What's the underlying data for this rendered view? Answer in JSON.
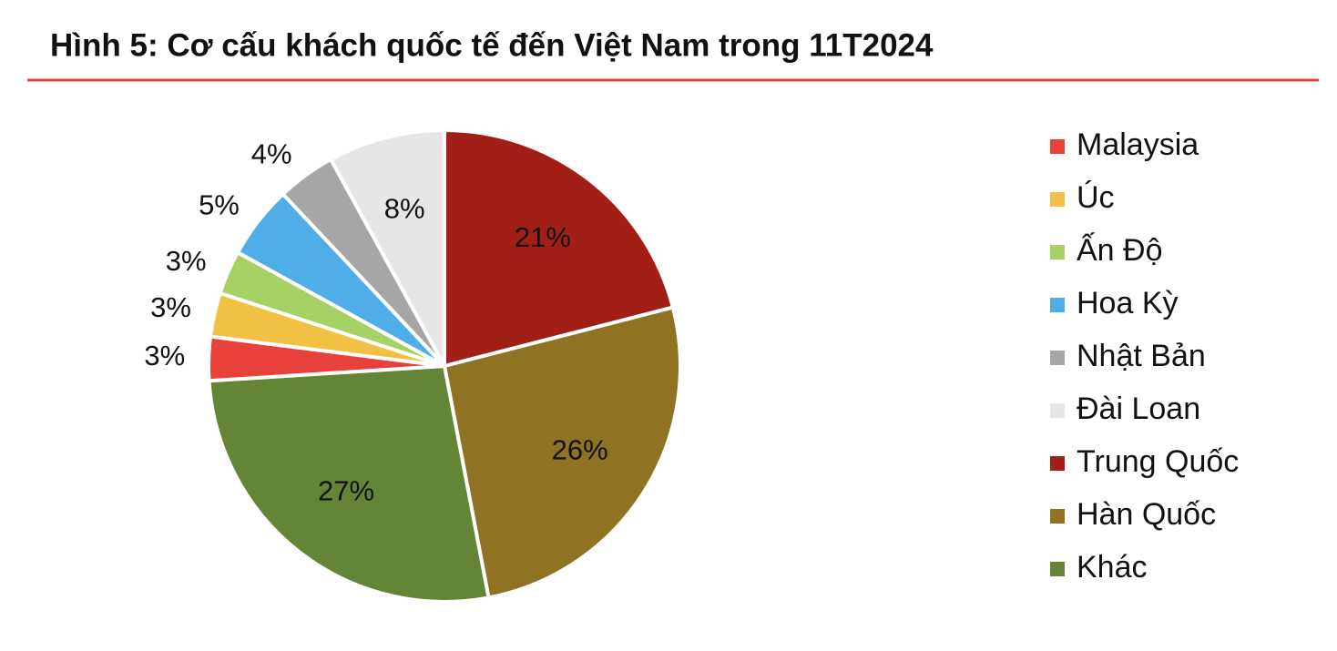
{
  "chart_data": {
    "type": "pie",
    "title": "Hình 5: Cơ cấu khách quốc tế đến Việt Nam trong 11T2024",
    "categories": [
      "Malaysia",
      "Úc",
      "Ấn Độ",
      "Hoa Kỳ",
      "Nhật Bản",
      "Đài Loan",
      "Trung Quốc",
      "Hàn Quốc",
      "Khác"
    ],
    "values": [
      3,
      3,
      3,
      5,
      4,
      8,
      21,
      26,
      27
    ],
    "value_labels": [
      "3%",
      "3%",
      "3%",
      "5%",
      "4%",
      "8%",
      "21%",
      "26%",
      "27%"
    ],
    "colors": [
      "#e8413c",
      "#f2c043",
      "#a5d165",
      "#4faee8",
      "#a6a6a6",
      "#e6e6e6",
      "#a11f17",
      "#8f7323",
      "#648535"
    ],
    "legend": "right"
  }
}
